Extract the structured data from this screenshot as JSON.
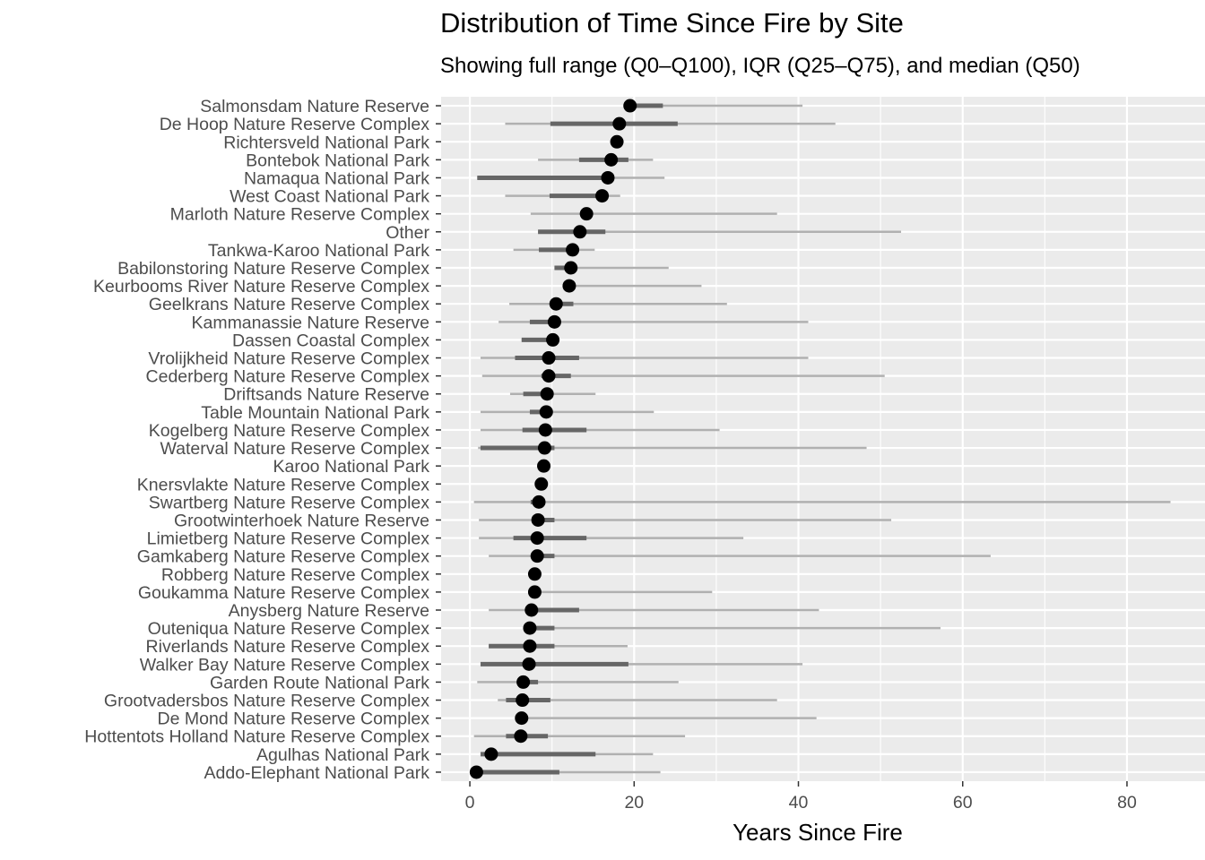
{
  "chart_data": {
    "type": "range-dot",
    "title": "Distribution of Time Since Fire by Site",
    "subtitle": "Showing full range (Q0–Q100), IQR (Q25–Q75), and median (Q50)",
    "xlabel": "Years Since Fire",
    "ylabel": "",
    "xlim": [
      -3.5,
      89.5
    ],
    "xticks": [
      0,
      20,
      40,
      60,
      80
    ],
    "grid": true,
    "colors": {
      "panel": "#ebebeb",
      "grid": "#ffffff",
      "range": "#b0b0b0",
      "iqr": "#666666",
      "median": "#000000"
    },
    "sites": [
      {
        "name": "Salmonsdam Nature Reserve",
        "q0": 19.5,
        "q25": 19.5,
        "q50": 19.5,
        "q75": 23.5,
        "q100": 40.5
      },
      {
        "name": "De Hoop Nature Reserve Complex",
        "q0": 4.3,
        "q25": 9.8,
        "q50": 18.2,
        "q75": 25.3,
        "q100": 44.5
      },
      {
        "name": "Richtersveld National Park",
        "q0": 17.9,
        "q25": 17.9,
        "q50": 17.9,
        "q75": 17.9,
        "q100": 17.9
      },
      {
        "name": "Bontebok National Park",
        "q0": 8.3,
        "q25": 13.3,
        "q50": 17.2,
        "q75": 19.3,
        "q100": 22.3
      },
      {
        "name": "Namaqua National Park",
        "q0": 0.9,
        "q25": 0.9,
        "q50": 16.8,
        "q75": 16.8,
        "q100": 23.7
      },
      {
        "name": "West Coast National Park",
        "q0": 4.3,
        "q25": 9.7,
        "q50": 16.1,
        "q75": 16.1,
        "q100": 18.3
      },
      {
        "name": "Marloth Nature Reserve Complex",
        "q0": 7.4,
        "q25": 14.2,
        "q50": 14.2,
        "q75": 14.6,
        "q100": 37.4
      },
      {
        "name": "Other",
        "q0": 8.3,
        "q25": 8.3,
        "q50": 13.4,
        "q75": 16.5,
        "q100": 52.5
      },
      {
        "name": "Tankwa-Karoo National Park",
        "q0": 5.3,
        "q25": 8.4,
        "q50": 12.5,
        "q75": 12.5,
        "q100": 15.2
      },
      {
        "name": "Babilonstoring Nature Reserve Complex",
        "q0": 10.3,
        "q25": 10.3,
        "q50": 12.3,
        "q75": 12.3,
        "q100": 24.2
      },
      {
        "name": "Keurbooms River Nature Reserve Complex",
        "q0": 12.1,
        "q25": 12.1,
        "q50": 12.1,
        "q75": 12.1,
        "q100": 28.2
      },
      {
        "name": "Geelkrans Nature Reserve Complex",
        "q0": 4.8,
        "q25": 10.5,
        "q50": 10.5,
        "q75": 12.6,
        "q100": 31.3
      },
      {
        "name": "Kammanassie Nature Reserve",
        "q0": 3.5,
        "q25": 7.3,
        "q50": 10.3,
        "q75": 10.3,
        "q100": 41.2
      },
      {
        "name": "Dassen Coastal Complex",
        "q0": 6.3,
        "q25": 6.3,
        "q50": 10.1,
        "q75": 10.1,
        "q100": 10.1
      },
      {
        "name": "Vrolijkheid Nature Reserve Complex",
        "q0": 1.3,
        "q25": 5.5,
        "q50": 9.6,
        "q75": 13.3,
        "q100": 41.2
      },
      {
        "name": "Cederberg Nature Reserve Complex",
        "q0": 1.5,
        "q25": 8.7,
        "q50": 9.6,
        "q75": 12.3,
        "q100": 50.5
      },
      {
        "name": "Driftsands Nature Reserve",
        "q0": 4.9,
        "q25": 6.5,
        "q50": 9.4,
        "q75": 9.4,
        "q100": 15.3
      },
      {
        "name": "Table Mountain National Park",
        "q0": 1.3,
        "q25": 7.3,
        "q50": 9.3,
        "q75": 9.3,
        "q100": 22.4
      },
      {
        "name": "Kogelberg Nature Reserve Complex",
        "q0": 1.3,
        "q25": 6.4,
        "q50": 9.2,
        "q75": 14.2,
        "q100": 30.4
      },
      {
        "name": "Waterval Nature Reserve Complex",
        "q0": 1.0,
        "q25": 1.3,
        "q50": 9.1,
        "q75": 10.3,
        "q100": 48.3
      },
      {
        "name": "Karoo National Park",
        "q0": 9.0,
        "q25": 9.0,
        "q50": 9.0,
        "q75": 9.0,
        "q100": 9.0
      },
      {
        "name": "Knersvlakte Nature Reserve Complex",
        "q0": 8.7,
        "q25": 8.7,
        "q50": 8.7,
        "q75": 8.7,
        "q100": 8.7
      },
      {
        "name": "Swartberg Nature Reserve Complex",
        "q0": 0.5,
        "q25": 7.4,
        "q50": 8.4,
        "q75": 8.4,
        "q100": 85.3
      },
      {
        "name": "Grootwinterhoek Nature Reserve",
        "q0": 1.1,
        "q25": 8.2,
        "q50": 8.3,
        "q75": 10.3,
        "q100": 51.3
      },
      {
        "name": "Limietberg Nature Reserve Complex",
        "q0": 1.1,
        "q25": 5.3,
        "q50": 8.2,
        "q75": 14.2,
        "q100": 33.3
      },
      {
        "name": "Gamkaberg Nature Reserve Complex",
        "q0": 2.3,
        "q25": 8.2,
        "q50": 8.2,
        "q75": 10.3,
        "q100": 63.4
      },
      {
        "name": "Robberg Nature Reserve Complex",
        "q0": 7.9,
        "q25": 7.9,
        "q50": 7.9,
        "q75": 7.9,
        "q100": 7.9
      },
      {
        "name": "Goukamma Nature Reserve Complex",
        "q0": 7.9,
        "q25": 7.9,
        "q50": 7.9,
        "q75": 7.9,
        "q100": 29.5
      },
      {
        "name": "Anysberg Nature Reserve",
        "q0": 2.3,
        "q25": 7.5,
        "q50": 7.5,
        "q75": 13.3,
        "q100": 42.5
      },
      {
        "name": "Outeniqua Nature Reserve Complex",
        "q0": 7.3,
        "q25": 7.3,
        "q50": 7.3,
        "q75": 10.3,
        "q100": 57.3
      },
      {
        "name": "Riverlands Nature Reserve Complex",
        "q0": 2.3,
        "q25": 2.3,
        "q50": 7.3,
        "q75": 10.3,
        "q100": 19.2
      },
      {
        "name": "Walker Bay Nature Reserve Complex",
        "q0": 1.3,
        "q25": 1.3,
        "q50": 7.2,
        "q75": 19.3,
        "q100": 40.5
      },
      {
        "name": "Garden Route National Park",
        "q0": 0.9,
        "q25": 6.5,
        "q50": 6.5,
        "q75": 8.3,
        "q100": 25.4
      },
      {
        "name": "Grootvadersbos Nature Reserve Complex",
        "q0": 3.4,
        "q25": 4.4,
        "q50": 6.4,
        "q75": 9.8,
        "q100": 37.4
      },
      {
        "name": "De Mond Nature Reserve Complex",
        "q0": 6.3,
        "q25": 6.3,
        "q50": 6.3,
        "q75": 6.3,
        "q100": 42.2
      },
      {
        "name": "Hottentots Holland Nature Reserve Complex",
        "q0": 0.5,
        "q25": 4.4,
        "q50": 6.2,
        "q75": 9.5,
        "q100": 26.2
      },
      {
        "name": "Agulhas National Park",
        "q0": 1.3,
        "q25": 1.3,
        "q50": 2.6,
        "q75": 15.3,
        "q100": 22.3
      },
      {
        "name": "Addo-Elephant National Park",
        "q0": 0.8,
        "q25": 0.8,
        "q50": 0.8,
        "q75": 10.9,
        "q100": 23.2
      }
    ]
  }
}
